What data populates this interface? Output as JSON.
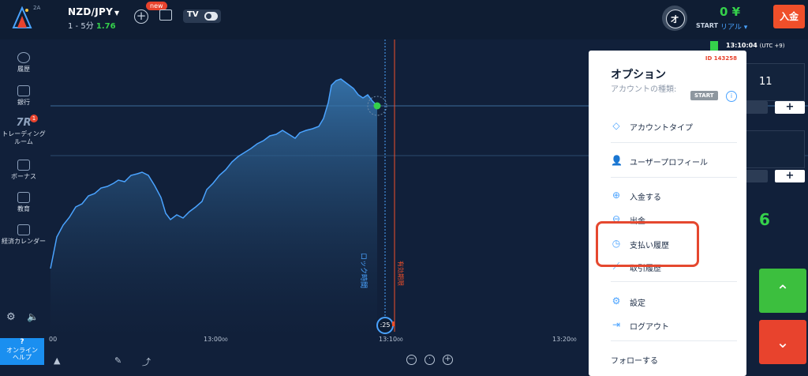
{
  "topbar": {
    "logo_badge": "2A",
    "pair": "NZD/JPY",
    "period_prefix": "1 - 5分",
    "payout": "1.76",
    "new_badge": "new",
    "tv_label": "TV",
    "avatar_letter": "オ",
    "balance": "0 ¥",
    "account_type": "START",
    "account_mode": "リアル ▾",
    "deposit_label": "入金"
  },
  "sidebar": {
    "items": [
      {
        "label": "履歴",
        "icon": "history-icon"
      },
      {
        "label": "銀行",
        "icon": "wallet-icon"
      },
      {
        "label": "トレーディング\nルーム",
        "icon": "trading-room-icon",
        "badge": "1"
      },
      {
        "label": "ボーナス",
        "icon": "bonus-icon"
      },
      {
        "label": "教育",
        "icon": "graduation-cap-icon"
      },
      {
        "label": "経済カレンダー",
        "icon": "calendar-icon"
      }
    ],
    "help_title": "?",
    "help_label": "オンライン\nヘルプ"
  },
  "chart": {
    "x_ticks": [
      {
        "t": "00",
        "s": ""
      },
      {
        "t": "13:00",
        "s": "00"
      },
      {
        "t": "13:10",
        "s": "00"
      },
      {
        "t": "13:20",
        "s": "00"
      }
    ],
    "timer": ":25",
    "lock_label": "ロック時間",
    "expiry_label": "有効期限",
    "line_color": "#4aa3ff",
    "current_point_color": "#35d14b",
    "expiry_color": "#ef4f2a"
  },
  "right_panel": {
    "clock": "13:10:04",
    "clock_tz": "(UTC +9)",
    "value1": "11",
    "value2": "6"
  },
  "popup": {
    "id": "ID 143258",
    "title": "オプション",
    "subtitle": "アカウントの種類:",
    "start_pill": "START",
    "items": [
      {
        "label": "アカウントタイプ",
        "icon": "diamond-icon"
      },
      {
        "label": "ユーザープロフィール",
        "icon": "user-icon"
      },
      {
        "label": "入金する",
        "icon": "plus-circle-icon"
      },
      {
        "label": "出金",
        "icon": "minus-circle-icon"
      },
      {
        "label": "支払い履歴",
        "icon": "clock-icon"
      },
      {
        "label": "取引履歴",
        "icon": "trade-history-icon"
      },
      {
        "label": "設定",
        "icon": "gear-icon"
      },
      {
        "label": "ログアウト",
        "icon": "logout-icon"
      }
    ],
    "follow_label": "フォローする",
    "highlight_color": "#e5482f"
  }
}
